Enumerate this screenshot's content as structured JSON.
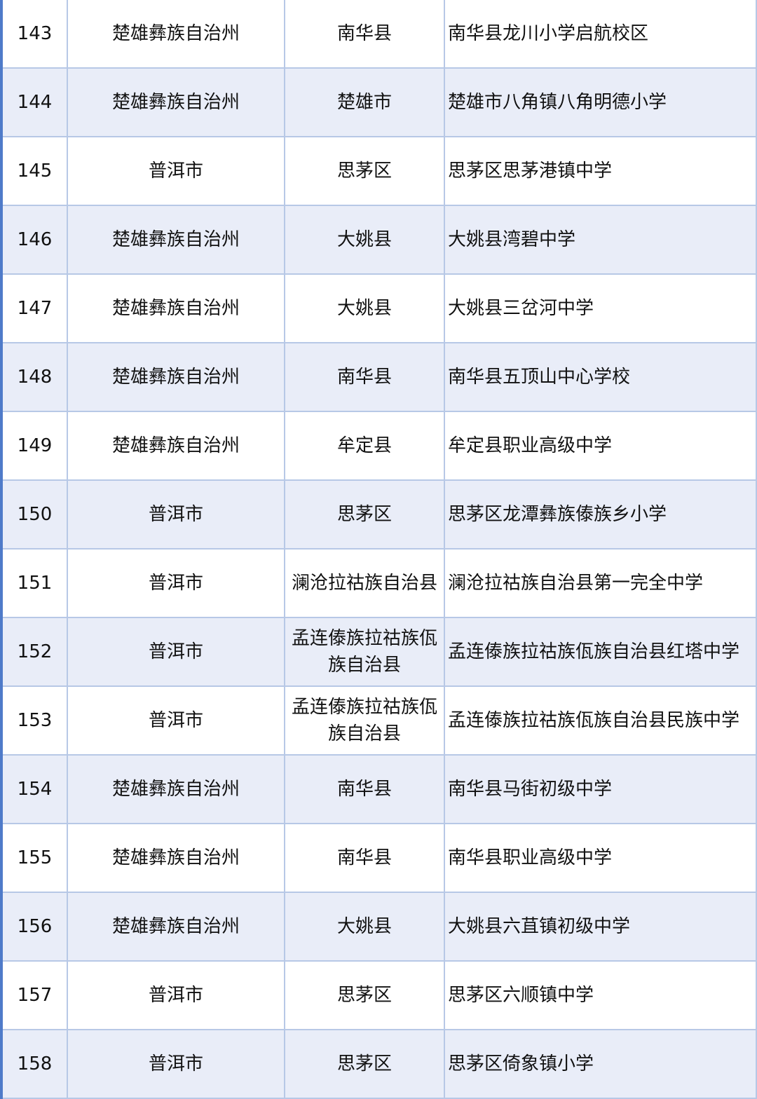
{
  "table": {
    "rows": [
      {
        "no": "143",
        "prefecture": "楚雄彝族自治州",
        "county": "南华县",
        "school": "南华县龙川小学启航校区"
      },
      {
        "no": "144",
        "prefecture": "楚雄彝族自治州",
        "county": "楚雄市",
        "school": "楚雄市八角镇八角明德小学"
      },
      {
        "no": "145",
        "prefecture": "普洱市",
        "county": "思茅区",
        "school": "思茅区思茅港镇中学"
      },
      {
        "no": "146",
        "prefecture": "楚雄彝族自治州",
        "county": "大姚县",
        "school": "大姚县湾碧中学"
      },
      {
        "no": "147",
        "prefecture": "楚雄彝族自治州",
        "county": "大姚县",
        "school": "大姚县三岔河中学"
      },
      {
        "no": "148",
        "prefecture": "楚雄彝族自治州",
        "county": "南华县",
        "school": "南华县五顶山中心学校"
      },
      {
        "no": "149",
        "prefecture": "楚雄彝族自治州",
        "county": "牟定县",
        "school": "牟定县职业高级中学"
      },
      {
        "no": "150",
        "prefecture": "普洱市",
        "county": "思茅区",
        "school": "思茅区龙潭彝族傣族乡小学"
      },
      {
        "no": "151",
        "prefecture": "普洱市",
        "county": "澜沧拉祜族自治县",
        "school": "澜沧拉祜族自治县第一完全中学"
      },
      {
        "no": "152",
        "prefecture": "普洱市",
        "county": "孟连傣族拉祜族佤族自治县",
        "school": "孟连傣族拉祜族佤族自治县红塔中学"
      },
      {
        "no": "153",
        "prefecture": "普洱市",
        "county": "孟连傣族拉祜族佤族自治县",
        "school": "孟连傣族拉祜族佤族自治县民族中学"
      },
      {
        "no": "154",
        "prefecture": "楚雄彝族自治州",
        "county": "南华县",
        "school": "南华县马街初级中学"
      },
      {
        "no": "155",
        "prefecture": "楚雄彝族自治州",
        "county": "南华县",
        "school": "南华县职业高级中学"
      },
      {
        "no": "156",
        "prefecture": "楚雄彝族自治州",
        "county": "大姚县",
        "school": "大姚县六苴镇初级中学"
      },
      {
        "no": "157",
        "prefecture": "普洱市",
        "county": "思茅区",
        "school": "思茅区六顺镇中学"
      },
      {
        "no": "158",
        "prefecture": "普洱市",
        "county": "思茅区",
        "school": "思茅区倚象镇小学"
      }
    ]
  },
  "colors": {
    "row_shade": "#e9edf8",
    "grid": "#b7c8e6",
    "left_border": "#4f7bc9"
  }
}
